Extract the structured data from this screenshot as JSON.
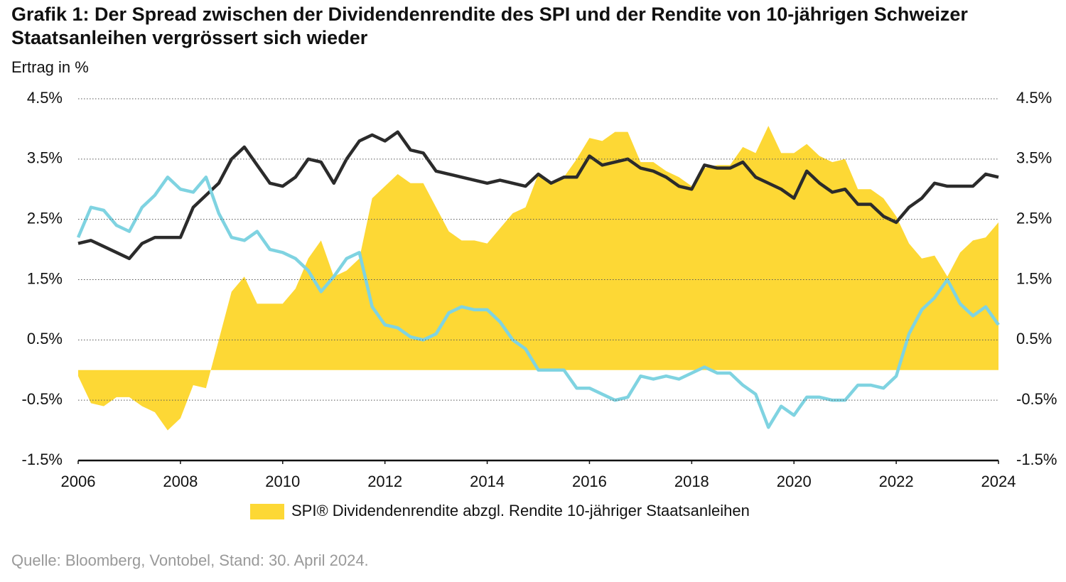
{
  "chart_data": {
    "type": "line",
    "title": "Grafik 1: Der Spread zwischen der Dividendenrendite des SPI und der Rendite von 10-jährigen Schweizer Staatsanleihen vergrössert sich wieder",
    "subtitle": "Ertrag in %",
    "source": "Quelle: Bloomberg, Vontobel, Stand: 30. April 2024.",
    "x": [
      2006,
      2006.25,
      2006.5,
      2006.75,
      2007,
      2007.25,
      2007.5,
      2007.75,
      2008,
      2008.25,
      2008.5,
      2008.75,
      2009,
      2009.25,
      2009.5,
      2009.75,
      2010,
      2010.25,
      2010.5,
      2010.75,
      2011,
      2011.25,
      2011.5,
      2011.75,
      2012,
      2012.25,
      2012.5,
      2012.75,
      2013,
      2013.25,
      2013.5,
      2013.75,
      2014,
      2014.25,
      2014.5,
      2014.75,
      2015,
      2015.25,
      2015.5,
      2015.75,
      2016,
      2016.25,
      2016.5,
      2016.75,
      2017,
      2017.25,
      2017.5,
      2017.75,
      2018,
      2018.25,
      2018.5,
      2018.75,
      2019,
      2019.25,
      2019.5,
      2019.75,
      2020,
      2020.25,
      2020.5,
      2020.75,
      2021,
      2021.25,
      2021.5,
      2021.75,
      2022,
      2022.25,
      2022.5,
      2022.75,
      2023,
      2023.25,
      2023.5,
      2023.75,
      2024
    ],
    "series": [
      {
        "name": "SPI® Dividendenrendite abzgl. Rendite 10-jähriger Staatsanleihen",
        "type": "area",
        "color": "#fdd835",
        "values": [
          -0.1,
          -0.55,
          -0.6,
          -0.45,
          -0.45,
          -0.6,
          -0.7,
          -1.0,
          -0.8,
          -0.25,
          -0.3,
          0.5,
          1.3,
          1.55,
          1.1,
          1.1,
          1.1,
          1.35,
          1.85,
          2.15,
          1.55,
          1.65,
          1.85,
          2.85,
          3.05,
          3.25,
          3.1,
          3.1,
          2.7,
          2.3,
          2.15,
          2.15,
          2.1,
          2.35,
          2.6,
          2.7,
          3.25,
          3.1,
          3.2,
          3.5,
          3.85,
          3.8,
          3.95,
          3.95,
          3.45,
          3.45,
          3.3,
          3.2,
          3.05,
          3.35,
          3.4,
          3.4,
          3.7,
          3.6,
          4.05,
          3.6,
          3.6,
          3.75,
          3.55,
          3.45,
          3.5,
          3.0,
          3.0,
          2.85,
          2.55,
          2.1,
          1.85,
          1.9,
          1.55,
          1.95,
          2.15,
          2.2,
          2.45
        ]
      },
      {
        "type": "line",
        "color": "#2b2b2b",
        "values": [
          2.1,
          2.15,
          2.05,
          1.95,
          1.85,
          2.1,
          2.2,
          2.2,
          2.2,
          2.7,
          2.9,
          3.1,
          3.5,
          3.7,
          3.4,
          3.1,
          3.05,
          3.2,
          3.5,
          3.45,
          3.1,
          3.5,
          3.8,
          3.9,
          3.8,
          3.95,
          3.65,
          3.6,
          3.3,
          3.25,
          3.2,
          3.15,
          3.1,
          3.15,
          3.1,
          3.05,
          3.25,
          3.1,
          3.2,
          3.2,
          3.55,
          3.4,
          3.45,
          3.5,
          3.35,
          3.3,
          3.2,
          3.05,
          3.0,
          3.4,
          3.35,
          3.35,
          3.45,
          3.2,
          3.1,
          3.0,
          2.85,
          3.3,
          3.1,
          2.95,
          3.0,
          2.75,
          2.75,
          2.55,
          2.45,
          2.7,
          2.85,
          3.1,
          3.05,
          3.05,
          3.05,
          3.25,
          3.2
        ]
      },
      {
        "type": "line",
        "color": "#7fd3e1",
        "values": [
          2.2,
          2.7,
          2.65,
          2.4,
          2.3,
          2.7,
          2.9,
          3.2,
          3.0,
          2.95,
          3.2,
          2.6,
          2.2,
          2.15,
          2.3,
          2.0,
          1.95,
          1.85,
          1.65,
          1.3,
          1.55,
          1.85,
          1.95,
          1.05,
          0.75,
          0.7,
          0.55,
          0.5,
          0.6,
          0.95,
          1.05,
          1.0,
          1.0,
          0.8,
          0.5,
          0.35,
          0.0,
          0.0,
          0.0,
          -0.3,
          -0.3,
          -0.4,
          -0.5,
          -0.45,
          -0.1,
          -0.15,
          -0.1,
          -0.15,
          -0.05,
          0.05,
          -0.05,
          -0.05,
          -0.25,
          -0.4,
          -0.95,
          -0.6,
          -0.75,
          -0.45,
          -0.45,
          -0.5,
          -0.5,
          -0.25,
          -0.25,
          -0.3,
          -0.1,
          0.6,
          1.0,
          1.2,
          1.5,
          1.1,
          0.9,
          1.05,
          0.75
        ]
      }
    ],
    "xlim": [
      2006,
      2024
    ],
    "xticks": [
      2006,
      2008,
      2010,
      2012,
      2014,
      2016,
      2018,
      2020,
      2022,
      2024
    ],
    "ylim": [
      -1.5,
      4.5
    ],
    "yticks": [
      {
        "value": -1.5,
        "label": "-1.5%"
      },
      {
        "value": -0.5,
        "label": "-0.5%"
      },
      {
        "value": 0.5,
        "label": "0.5%"
      },
      {
        "value": 1.5,
        "label": "1.5%"
      },
      {
        "value": 2.5,
        "label": "2.5%"
      },
      {
        "value": 3.5,
        "label": "3.5%"
      },
      {
        "value": 4.5,
        "label": "4.5%"
      }
    ],
    "y2lim": [
      -1.5,
      4.5
    ],
    "y2ticks": [
      {
        "value": -1.5,
        "label": "-1.5%"
      },
      {
        "value": -0.5,
        "label": "-0.5%"
      },
      {
        "value": 0.5,
        "label": "0.5%"
      },
      {
        "value": 1.5,
        "label": "1.5%"
      },
      {
        "value": 2.5,
        "label": "2.5%"
      },
      {
        "value": 3.5,
        "label": "3.5%"
      },
      {
        "value": 4.5,
        "label": "4.5%"
      }
    ],
    "grid": true,
    "legend": "bottom"
  }
}
